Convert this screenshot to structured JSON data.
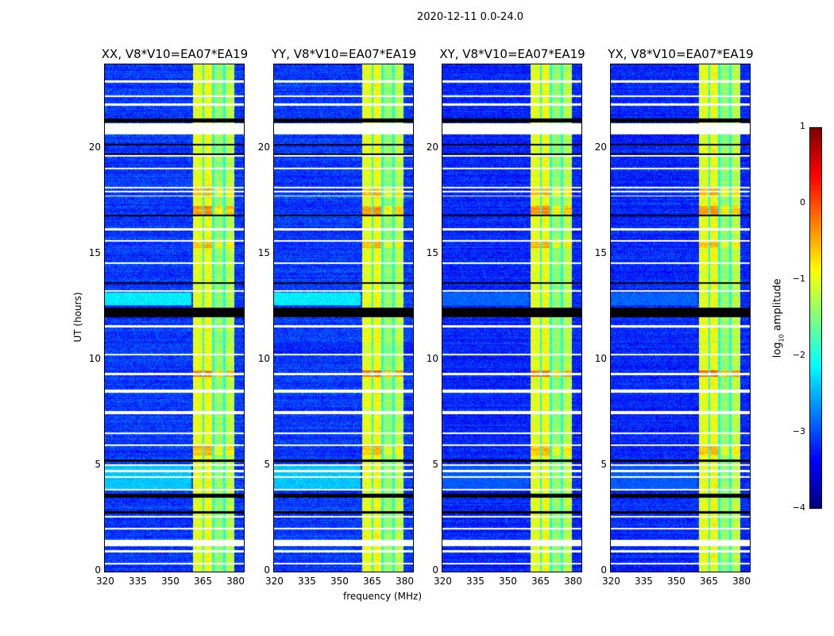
{
  "chart_data": {
    "type": "heatmap",
    "title": "2020-12-11 0.0-24.0",
    "xlabel": "frequency (MHz)",
    "ylabel": "UT (hours)",
    "xlim": [
      320,
      384
    ],
    "ylim": [
      0,
      24
    ],
    "xticks": [
      320,
      335,
      350,
      365,
      380
    ],
    "yticks": [
      0,
      5,
      10,
      15,
      20
    ],
    "panels": [
      {
        "title": "XX, V8*V10=EA07*EA19",
        "baseline": -3.1,
        "broadband_boost": 1.0
      },
      {
        "title": "YY, V8*V10=EA07*EA19",
        "baseline": -3.1,
        "broadband_boost": 1.0
      },
      {
        "title": "XY, V8*V10=EA07*EA19",
        "baseline": -3.2,
        "broadband_boost": 0.3
      },
      {
        "title": "YX, V8*V10=EA07*EA19",
        "baseline": -3.2,
        "broadband_boost": 0.3
      }
    ],
    "rfi_bands_mhz": [
      [
        360.5,
        364.8,
        -1.0
      ],
      [
        365.8,
        369.5,
        -0.9
      ],
      [
        370.6,
        374.5,
        -1.4
      ],
      [
        375.6,
        379.6,
        -1.2
      ]
    ],
    "rfi_gap_level": -2.0,
    "hot_intervals_hours": [
      [
        9.2,
        9.5,
        0.8
      ],
      [
        16.9,
        17.3,
        0.6
      ],
      [
        17.8,
        18.2,
        0.4
      ],
      [
        15.3,
        15.7,
        0.4
      ],
      [
        5.5,
        6.0,
        0.4
      ]
    ],
    "broadband_events_hours": [
      [
        12.6,
        13.2,
        -2.2
      ],
      [
        3.9,
        5.0,
        -2.4
      ]
    ],
    "flagged_white_hours": [
      [
        23.15,
        23.25
      ],
      [
        22.45,
        22.55
      ],
      [
        22.05,
        22.15
      ],
      [
        20.7,
        21.2
      ],
      [
        19.65,
        19.72
      ],
      [
        19.05,
        19.12
      ],
      [
        18.15,
        18.22
      ],
      [
        17.95,
        18.0
      ],
      [
        17.75,
        17.8
      ],
      [
        16.15,
        16.25
      ],
      [
        15.6,
        15.68
      ],
      [
        14.55,
        14.62
      ],
      [
        13.25,
        13.32
      ],
      [
        11.55,
        11.65
      ],
      [
        10.25,
        10.32
      ],
      [
        9.3,
        9.4
      ],
      [
        8.45,
        8.6
      ],
      [
        7.45,
        7.6
      ],
      [
        6.5,
        6.58
      ],
      [
        5.95,
        6.02
      ],
      [
        5.0,
        5.08
      ],
      [
        4.72,
        4.8
      ],
      [
        4.45,
        4.52
      ],
      [
        3.85,
        3.92
      ],
      [
        2.55,
        2.62
      ],
      [
        2.0,
        2.08
      ],
      [
        1.2,
        1.5
      ],
      [
        0.92,
        1.0
      ],
      [
        0.35,
        0.42
      ]
    ],
    "flagged_black_hours": [
      [
        12.05,
        12.5
      ],
      [
        20.15,
        20.25
      ],
      [
        19.72,
        19.8
      ],
      [
        16.8,
        16.9
      ],
      [
        13.6,
        13.7
      ],
      [
        5.2,
        5.3
      ],
      [
        3.5,
        3.7
      ],
      [
        2.75,
        2.85
      ],
      [
        21.25,
        21.45
      ]
    ],
    "colorbar": {
      "label": "log10 amplitude",
      "label_base": "log",
      "label_sub": "10",
      "label_rest": " amplitude",
      "range": [
        -4,
        1
      ],
      "ticks": [
        "1",
        "0",
        "−1",
        "−2",
        "−3",
        "−4"
      ],
      "colormap": "jet"
    }
  }
}
